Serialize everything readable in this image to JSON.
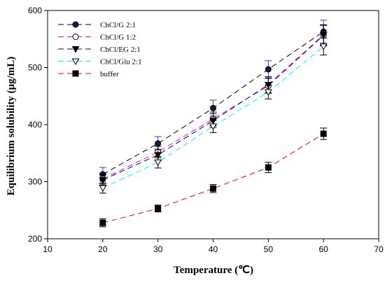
{
  "chart_data": {
    "type": "line",
    "title": "",
    "xlabel": "Temperature (℃)",
    "ylabel": "Equilibrium solubility (μg/mL)",
    "xlim": [
      10,
      70
    ],
    "ylim": [
      200,
      600
    ],
    "xticks": [
      10,
      20,
      30,
      40,
      50,
      60,
      70
    ],
    "yticks": [
      200,
      300,
      400,
      500,
      600
    ],
    "grid": false,
    "legend_position": "top-left",
    "x": [
      20,
      30,
      40,
      50,
      60
    ],
    "series": [
      {
        "name": "ChCl/G 2:1",
        "values": [
          313,
          367,
          429,
          497,
          563
        ],
        "errors": [
          12,
          12,
          14,
          15,
          20
        ],
        "color": "#000000",
        "marker": "filled-circle",
        "line": "dash"
      },
      {
        "name": "ChCl/G 1:2",
        "values": [
          305,
          352,
          410,
          468,
          556
        ],
        "errors": [
          9,
          10,
          12,
          13,
          18
        ],
        "color": "#ff00ff",
        "marker": "open-circle",
        "line": "dash"
      },
      {
        "name": "ChCl/EG 2:1",
        "values": [
          303,
          347,
          407,
          470,
          557
        ],
        "errors": [
          9,
          10,
          12,
          14,
          18
        ],
        "color": "#000080",
        "marker": "filled-triangle-down",
        "line": "dash"
      },
      {
        "name": "ChCl/Glu 2:1",
        "values": [
          289,
          334,
          397,
          457,
          537
        ],
        "errors": [
          9,
          10,
          11,
          12,
          15
        ],
        "color": "#00ffff",
        "marker": "open-triangle-down",
        "line": "dash"
      },
      {
        "name": "buffer",
        "values": [
          228,
          253,
          288,
          325,
          384
        ],
        "errors": [
          7,
          6,
          7,
          9,
          10
        ],
        "color": "#ff0000",
        "marker": "filled-square",
        "line": "dash"
      }
    ]
  }
}
